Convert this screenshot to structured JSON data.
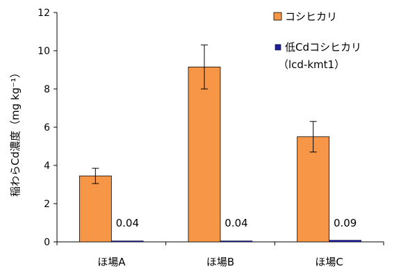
{
  "chart_data": {
    "type": "bar",
    "categories": [
      "ほ場A",
      "ほ場B",
      "ほ場C"
    ],
    "series": [
      {
        "name": "コシヒカリ",
        "values": [
          3.45,
          9.15,
          5.5
        ],
        "error": [
          0.4,
          1.15,
          0.8
        ],
        "color": "#F79646"
      },
      {
        "name": "低Cdコシヒカリ",
        "name_line2": "（lcd-kmt1）",
        "values": [
          0.04,
          0.04,
          0.09
        ],
        "data_labels": [
          "0.04",
          "0.04",
          "0.09"
        ],
        "color": "#1F1FA0"
      }
    ],
    "ylabel": "稲わらCd濃度（mg kg⁻¹）",
    "ylim": [
      0,
      12
    ],
    "yticks": [
      "0",
      "2",
      "4",
      "6",
      "8",
      "10",
      "12"
    ],
    "grid": false,
    "legend_position": "top-right"
  }
}
